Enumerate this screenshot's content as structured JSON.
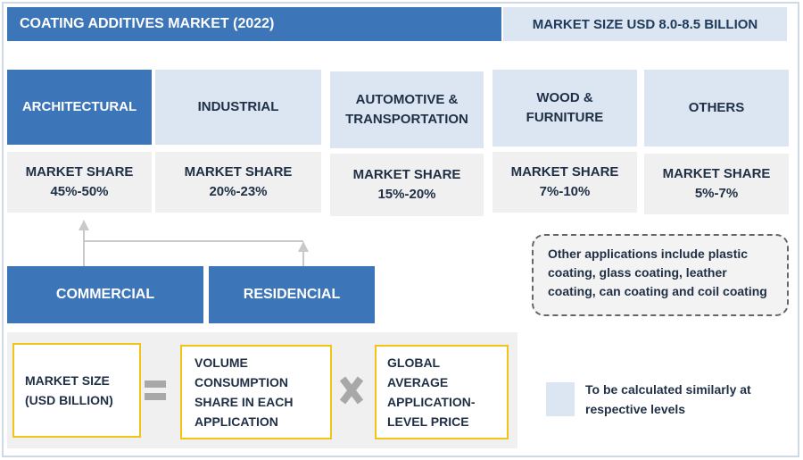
{
  "header": {
    "title": "COATING ADDITIVES MARKET (2022)",
    "market_size": "MARKET SIZE USD 8.0-8.5 BILLION"
  },
  "segments": [
    {
      "name": "ARCHITECTURAL",
      "share_label": "MARKET SHARE",
      "share_value": "45%-50%",
      "style": "dark"
    },
    {
      "name": "INDUSTRIAL",
      "share_label": "MARKET SHARE",
      "share_value": "20%-23%",
      "style": "light"
    },
    {
      "name_line1": "AUTOMOTIVE &",
      "name_line2": "TRANSPORTATION",
      "share_label": "MARKET SHARE",
      "share_value": "15%-20%",
      "style": "light"
    },
    {
      "name_line1": "WOOD &",
      "name_line2": "FURNITURE",
      "share_label": "MARKET SHARE",
      "share_value": "7%-10%",
      "style": "light"
    },
    {
      "name": "OTHERS",
      "share_label": "MARKET SHARE",
      "share_value": "5%-7%",
      "style": "light"
    }
  ],
  "sub_segments": [
    "COMMERCIAL",
    "RESIDENCIAL"
  ],
  "note": {
    "lines": [
      "Other applications include plastic",
      "coating, glass coating, leather",
      "coating, can coating and coil coating"
    ]
  },
  "formula": {
    "term1_lines": [
      "MARKET SIZE",
      "(USD BILLION)"
    ],
    "term2_lines": [
      "VOLUME",
      "CONSUMPTION",
      "SHARE IN EACH",
      "APPLICATION"
    ],
    "term3_lines": [
      "GLOBAL",
      "AVERAGE",
      "APPLICATION-",
      "LEVEL PRICE"
    ]
  },
  "legend": {
    "text_lines": [
      "To be calculated similarly at",
      "respective levels"
    ],
    "swatch_color": "#dbe6f2"
  },
  "colors": {
    "accent": "#3d76b8",
    "light": "#dbe6f2",
    "formula_border": "#f0c419"
  }
}
